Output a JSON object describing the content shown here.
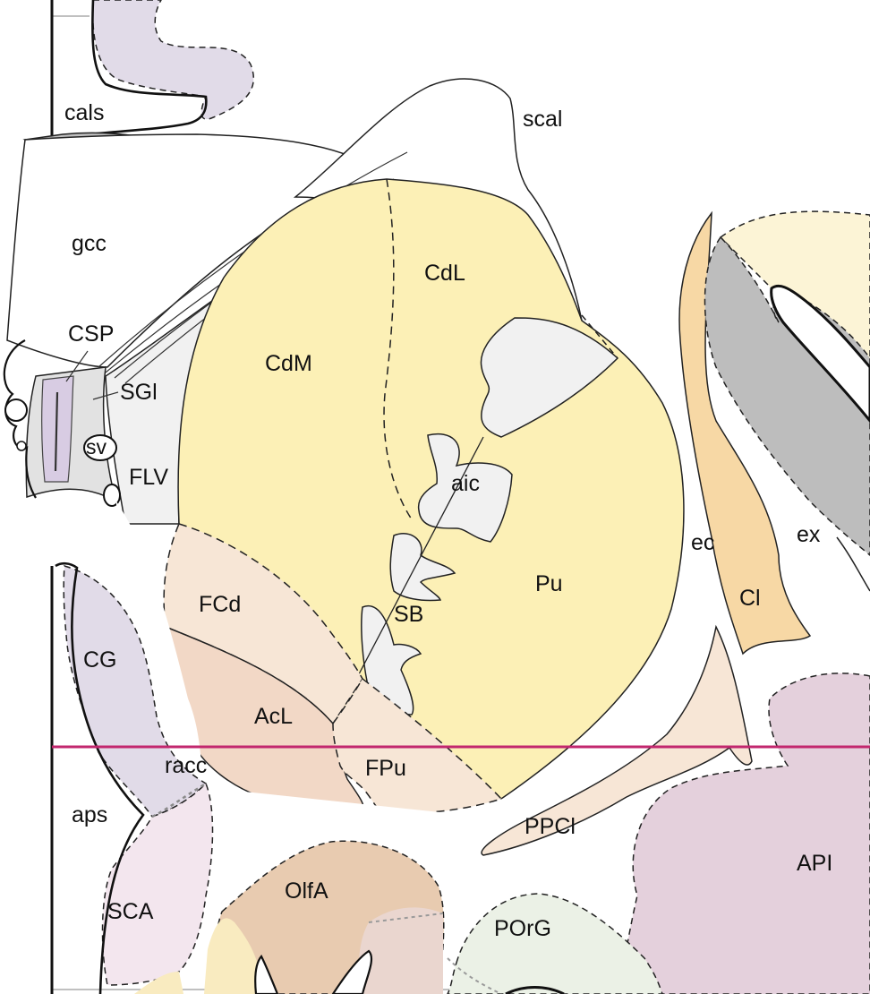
{
  "colors": {
    "striatum_yellow": "#fcf0b6",
    "fundus_peach": "#f7e6d6",
    "accumbens_salmon": "#f2d8c6",
    "white_matter": "#ffffff",
    "ventricle_grey": "#f1f1f1",
    "cingulate_lilac": "#e1dbe8",
    "subcallosal_pink": "#f3e6ee",
    "olfactory_tan": "#e8cbb0",
    "insula_mauve": "#e4d0dc",
    "orbital_green": "#ebf1e6",
    "claustrum_orange": "#f7d8a5",
    "insular_cortex_cream": "#fcf4d6",
    "insular_dark_grey": "#bdbdbd",
    "reference_line_magenta": "#c2276e",
    "outline": "#222222"
  },
  "labels": {
    "cals": "cals",
    "scal": "scal",
    "gcc": "gcc",
    "CdL": "CdL",
    "CSP": "CSP",
    "CdM": "CdM",
    "SGl": "SGl",
    "sv": "sv",
    "FLV": "FLV",
    "aic": "aic",
    "ec": "ec",
    "ex": "ex",
    "Pu": "Pu",
    "FCd": "FCd",
    "SB": "SB",
    "Cl": "Cl",
    "CG": "CG",
    "AcL": "AcL",
    "racc": "racc",
    "FPu": "FPu",
    "aps": "aps",
    "PPCl": "PPCl",
    "API": "API",
    "OlfA": "OlfA",
    "SCA": "SCA",
    "POrG": "POrG"
  }
}
